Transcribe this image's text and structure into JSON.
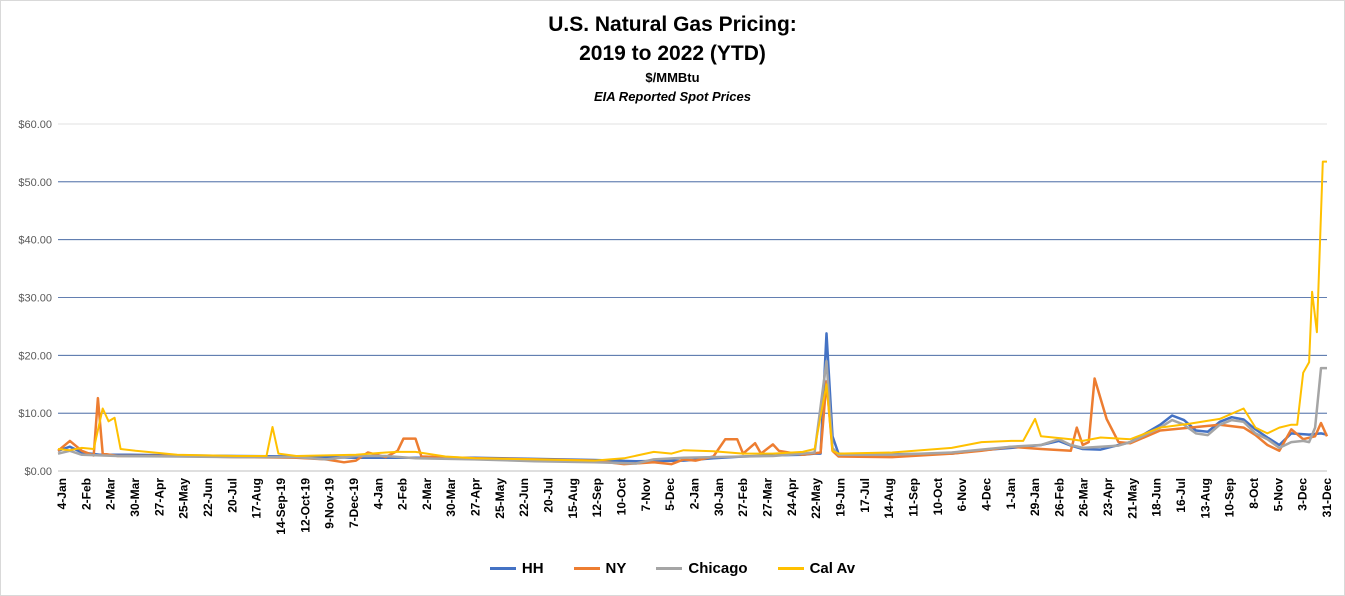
{
  "chart_data": {
    "type": "line",
    "title": "U.S. Natural Gas Pricing:",
    "title_line2": "2019 to 2022 (YTD)",
    "subtitle": "$/MMBtu",
    "subtitle2": "EIA Reported Spot Prices",
    "xlabel": "",
    "ylabel": "",
    "ylim": [
      0,
      60
    ],
    "y_ticks": [
      "$0.00",
      "$10.00",
      "$20.00",
      "$30.00",
      "$40.00",
      "$50.00",
      "$60.00"
    ],
    "grid": "horizontal",
    "legend_position": "bottom-center",
    "x_tick_labels": [
      "4-Jan",
      "2-Feb",
      "2-Mar",
      "30-Mar",
      "27-Apr",
      "25-May",
      "22-Jun",
      "20-Jul",
      "17-Aug",
      "14-Sep-19",
      "12-Oct-19",
      "9-Nov-19",
      "7-Dec-19",
      "4-Jan",
      "2-Feb",
      "2-Mar",
      "30-Mar",
      "27-Apr",
      "25-May",
      "22-Jun",
      "20-Jul",
      "15-Aug",
      "12-Sep",
      "10-Oct",
      "7-Nov",
      "5-Dec",
      "2-Jan",
      "30-Jan",
      "27-Feb",
      "27-Mar",
      "24-Apr",
      "22-May",
      "19-Jun",
      "17-Jul",
      "14-Aug",
      "11-Sep",
      "10-Oct",
      "6-Nov",
      "4-Dec",
      "1-Jan",
      "29-Jan",
      "26-Feb",
      "26-Mar",
      "23-Apr",
      "21-May",
      "18-Jun",
      "16-Jul",
      "13-Aug",
      "10-Sep",
      "8-Oct",
      "5-Nov",
      "3-Dec",
      "31-Dec"
    ],
    "x_span": 208,
    "series": [
      {
        "name": "HH",
        "color": "#4472C4",
        "points": [
          [
            0,
            3.5
          ],
          [
            2,
            4.2
          ],
          [
            4,
            3.2
          ],
          [
            7,
            2.8
          ],
          [
            12,
            2.8
          ],
          [
            20,
            2.7
          ],
          [
            30,
            2.6
          ],
          [
            40,
            2.5
          ],
          [
            50,
            2.3
          ],
          [
            60,
            2.3
          ],
          [
            70,
            2.3
          ],
          [
            80,
            2.1
          ],
          [
            90,
            1.9
          ],
          [
            97,
            1.7
          ],
          [
            105,
            1.8
          ],
          [
            110,
            2.2
          ],
          [
            115,
            2.5
          ],
          [
            120,
            2.7
          ],
          [
            125,
            2.8
          ],
          [
            127,
            3.0
          ],
          [
            128,
            3.0
          ],
          [
            129,
            23.8
          ],
          [
            130,
            6.0
          ],
          [
            131,
            3.0
          ],
          [
            140,
            2.9
          ],
          [
            150,
            3.0
          ],
          [
            155,
            3.6
          ],
          [
            160,
            4.0
          ],
          [
            165,
            4.5
          ],
          [
            168,
            5.2
          ],
          [
            170,
            4.4
          ],
          [
            172,
            3.8
          ],
          [
            175,
            3.7
          ],
          [
            178,
            4.5
          ],
          [
            180,
            5.0
          ],
          [
            183,
            6.8
          ],
          [
            185,
            8.0
          ],
          [
            187,
            9.6
          ],
          [
            189,
            8.8
          ],
          [
            191,
            7.0
          ],
          [
            193,
            6.8
          ],
          [
            195,
            8.5
          ],
          [
            197,
            9.3
          ],
          [
            199,
            8.9
          ],
          [
            201,
            7.2
          ],
          [
            203,
            5.8
          ],
          [
            205,
            4.5
          ],
          [
            207,
            6.5
          ],
          [
            210,
            6.3
          ],
          [
            212,
            6.5
          ],
          [
            213,
            6.3
          ]
        ]
      },
      {
        "name": "NY",
        "color": "#ED7D31",
        "points": [
          [
            0,
            3.5
          ],
          [
            2,
            5.2
          ],
          [
            4,
            3.5
          ],
          [
            6,
            2.7
          ],
          [
            6.7,
            12.6
          ],
          [
            7.5,
            3.0
          ],
          [
            10,
            2.6
          ],
          [
            20,
            2.6
          ],
          [
            30,
            2.4
          ],
          [
            40,
            2.3
          ],
          [
            45,
            2.0
          ],
          [
            48,
            1.5
          ],
          [
            50,
            1.8
          ],
          [
            52,
            3.2
          ],
          [
            55,
            2.4
          ],
          [
            57,
            3.5
          ],
          [
            58,
            5.6
          ],
          [
            60,
            5.6
          ],
          [
            61,
            2.5
          ],
          [
            70,
            2.2
          ],
          [
            80,
            2.0
          ],
          [
            90,
            1.8
          ],
          [
            95,
            1.2
          ],
          [
            100,
            1.5
          ],
          [
            103,
            1.2
          ],
          [
            105,
            2.0
          ],
          [
            107,
            1.8
          ],
          [
            110,
            2.5
          ],
          [
            112,
            5.5
          ],
          [
            114,
            5.5
          ],
          [
            115,
            3.0
          ],
          [
            117,
            4.8
          ],
          [
            118,
            3.0
          ],
          [
            120,
            4.6
          ],
          [
            121,
            3.5
          ],
          [
            125,
            2.8
          ],
          [
            128,
            3.2
          ],
          [
            129,
            15.5
          ],
          [
            130,
            3.5
          ],
          [
            131,
            2.5
          ],
          [
            140,
            2.4
          ],
          [
            150,
            3.0
          ],
          [
            155,
            3.5
          ],
          [
            160,
            4.2
          ],
          [
            165,
            3.8
          ],
          [
            170,
            3.5
          ],
          [
            171,
            7.5
          ],
          [
            172,
            4.5
          ],
          [
            173,
            5.0
          ],
          [
            174,
            16.0
          ],
          [
            176,
            9.0
          ],
          [
            178,
            5.0
          ],
          [
            180,
            4.8
          ],
          [
            185,
            7.0
          ],
          [
            190,
            7.5
          ],
          [
            195,
            8.0
          ],
          [
            199,
            7.5
          ],
          [
            201,
            6.2
          ],
          [
            203,
            4.5
          ],
          [
            205,
            3.5
          ],
          [
            207,
            7.2
          ],
          [
            209,
            5.5
          ],
          [
            211,
            6.0
          ],
          [
            212,
            8.3
          ],
          [
            213,
            6.0
          ]
        ]
      },
      {
        "name": "Chicago",
        "color": "#A5A5A5",
        "points": [
          [
            0,
            3.0
          ],
          [
            2,
            3.5
          ],
          [
            4,
            2.8
          ],
          [
            10,
            2.6
          ],
          [
            20,
            2.5
          ],
          [
            30,
            2.4
          ],
          [
            40,
            2.4
          ],
          [
            45,
            2.0
          ],
          [
            50,
            2.6
          ],
          [
            55,
            2.6
          ],
          [
            60,
            2.2
          ],
          [
            70,
            2.0
          ],
          [
            80,
            1.7
          ],
          [
            90,
            1.5
          ],
          [
            97,
            1.3
          ],
          [
            100,
            2.0
          ],
          [
            105,
            2.3
          ],
          [
            110,
            2.4
          ],
          [
            115,
            2.5
          ],
          [
            120,
            2.6
          ],
          [
            125,
            3.0
          ],
          [
            127,
            3.2
          ],
          [
            129,
            19.0
          ],
          [
            130,
            4.0
          ],
          [
            131,
            2.8
          ],
          [
            140,
            2.8
          ],
          [
            150,
            3.2
          ],
          [
            155,
            3.7
          ],
          [
            160,
            4.2
          ],
          [
            165,
            4.5
          ],
          [
            168,
            5.5
          ],
          [
            170,
            4.5
          ],
          [
            172,
            4.0
          ],
          [
            175,
            4.2
          ],
          [
            178,
            4.4
          ],
          [
            180,
            5.0
          ],
          [
            183,
            6.5
          ],
          [
            185,
            7.5
          ],
          [
            187,
            8.8
          ],
          [
            189,
            8.0
          ],
          [
            191,
            6.5
          ],
          [
            193,
            6.2
          ],
          [
            195,
            8.0
          ],
          [
            197,
            8.8
          ],
          [
            199,
            8.5
          ],
          [
            201,
            6.5
          ],
          [
            203,
            5.5
          ],
          [
            205,
            4.0
          ],
          [
            207,
            5.0
          ],
          [
            209,
            5.2
          ],
          [
            210,
            5.0
          ],
          [
            211,
            7.5
          ],
          [
            212,
            17.8
          ],
          [
            213,
            17.8
          ]
        ]
      },
      {
        "name": "Cal Av",
        "color": "#FFC000",
        "points": [
          [
            0,
            3.8
          ],
          [
            2,
            3.6
          ],
          [
            4,
            4.0
          ],
          [
            6,
            3.8
          ],
          [
            7.5,
            10.8
          ],
          [
            8.5,
            8.6
          ],
          [
            9.5,
            9.2
          ],
          [
            10.5,
            3.8
          ],
          [
            13,
            3.5
          ],
          [
            20,
            2.8
          ],
          [
            30,
            2.6
          ],
          [
            35,
            2.6
          ],
          [
            36,
            7.6
          ],
          [
            37,
            3.0
          ],
          [
            40,
            2.6
          ],
          [
            50,
            2.8
          ],
          [
            55,
            3.2
          ],
          [
            57,
            3.3
          ],
          [
            60,
            3.3
          ],
          [
            65,
            2.5
          ],
          [
            70,
            2.2
          ],
          [
            80,
            2.0
          ],
          [
            90,
            1.8
          ],
          [
            95,
            2.2
          ],
          [
            100,
            3.3
          ],
          [
            103,
            3.0
          ],
          [
            105,
            3.6
          ],
          [
            110,
            3.4
          ],
          [
            115,
            3.0
          ],
          [
            120,
            3.0
          ],
          [
            125,
            3.3
          ],
          [
            127,
            3.8
          ],
          [
            129,
            15.0
          ],
          [
            130,
            3.5
          ],
          [
            131,
            3.0
          ],
          [
            140,
            3.2
          ],
          [
            150,
            4.0
          ],
          [
            155,
            5.0
          ],
          [
            160,
            5.2
          ],
          [
            162,
            5.2
          ],
          [
            164,
            9.0
          ],
          [
            165,
            6.0
          ],
          [
            170,
            5.5
          ],
          [
            172,
            5.2
          ],
          [
            175,
            5.8
          ],
          [
            180,
            5.5
          ],
          [
            185,
            7.5
          ],
          [
            190,
            8.2
          ],
          [
            195,
            9.0
          ],
          [
            199,
            10.8
          ],
          [
            201,
            7.5
          ],
          [
            203,
            6.5
          ],
          [
            205,
            7.5
          ],
          [
            207,
            8.0
          ],
          [
            208,
            8.0
          ],
          [
            209,
            17.0
          ],
          [
            210,
            18.8
          ],
          [
            210.5,
            31.0
          ],
          [
            211.3,
            24.0
          ],
          [
            212.3,
            53.5
          ],
          [
            213,
            53.5
          ]
        ]
      }
    ]
  }
}
